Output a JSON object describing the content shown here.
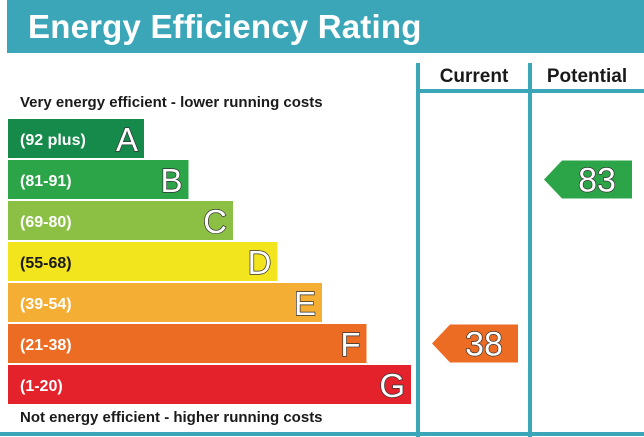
{
  "title": "Energy Efficiency Rating",
  "columns": {
    "current": "Current",
    "potential": "Potential"
  },
  "top_caption": "Very energy efficient - lower running costs",
  "bottom_caption": "Not energy efficient - higher running costs",
  "border_color": "#3aa6b8",
  "chart_data": {
    "type": "bar",
    "title": "Energy Efficiency Rating",
    "categories": [
      "A",
      "B",
      "C",
      "D",
      "E",
      "F",
      "G"
    ],
    "ranges": [
      "(92 plus)",
      "(81-91)",
      "(69-80)",
      "(55-68)",
      "(39-54)",
      "(21-38)",
      "(1-20)"
    ],
    "colors": [
      "#168a4a",
      "#2ca448",
      "#8cc044",
      "#f2e51e",
      "#f5ae34",
      "#ec6c24",
      "#e3222b"
    ],
    "current": {
      "rating": "F",
      "value": 38
    },
    "potential": {
      "rating": "B",
      "value": 83
    }
  }
}
